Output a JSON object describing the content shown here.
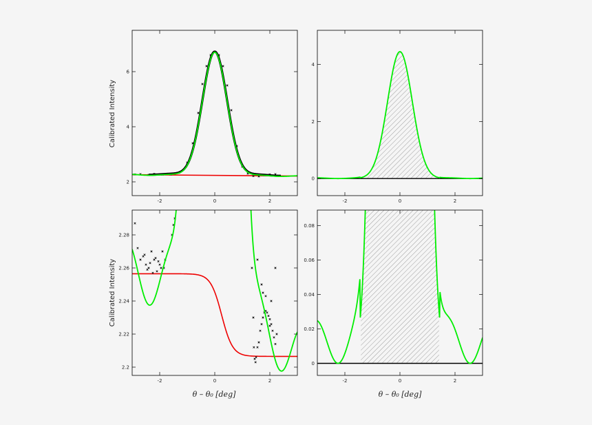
{
  "ylabel": "Calibrated Intensity",
  "xlabel": "θ  –  θ₀ [deg]",
  "colors": {
    "background": "#f5f5f5",
    "frame": "#000000",
    "observed": "#000000",
    "fit": "#00ee00",
    "baseline": "#ee0000",
    "hatch": "#888888"
  },
  "chart_data": [
    {
      "panel": "top-left",
      "type": "line",
      "xlim": [
        -3,
        3
      ],
      "ylim": [
        1.5,
        7.5
      ],
      "xticks": [
        "-2",
        "0",
        "2"
      ],
      "yticks": [
        "2",
        "4",
        "6"
      ],
      "ylabel": "Calibrated Intensity",
      "series": [
        {
          "role": "observed",
          "marker": "x",
          "x": [
            -2.9,
            -2.7,
            -2.4,
            -2.2,
            -1.9,
            -1.6,
            -1.3,
            -1.0,
            -0.8,
            -0.6,
            -0.45,
            -0.3,
            -0.15,
            0,
            0.15,
            0.3,
            0.45,
            0.6,
            0.8,
            1.0,
            1.2,
            1.4,
            1.6,
            1.8,
            2.0,
            2.2
          ],
          "y": [
            2.27,
            2.28,
            2.25,
            2.29,
            2.26,
            2.27,
            2.33,
            2.7,
            3.4,
            4.5,
            5.55,
            6.2,
            6.6,
            6.72,
            6.6,
            6.2,
            5.5,
            4.6,
            3.3,
            2.55,
            2.3,
            2.21,
            2.2,
            2.24,
            2.27,
            2.28
          ]
        },
        {
          "role": "fit",
          "form": "gaussian + baseline",
          "amplitude": 4.45,
          "center": 0.0,
          "sigma": 0.45,
          "baseline_start": 2.26,
          "baseline_end": 2.21
        },
        {
          "role": "baseline",
          "x": [
            -3,
            3
          ],
          "y": [
            2.26,
            2.21
          ]
        }
      ]
    },
    {
      "panel": "top-right",
      "type": "area",
      "xlim": [
        -3,
        3
      ],
      "ylim": [
        -0.6,
        5.2
      ],
      "xticks": [
        "-2",
        "0",
        "2"
      ],
      "yticks": [
        "0",
        "2",
        "4"
      ],
      "series": [
        {
          "role": "fit",
          "form": "baseline-subtracted gaussian",
          "amplitude": 4.45,
          "center": 0.0,
          "sigma": 0.45,
          "hatched_range": [
            -1.42,
            1.42
          ]
        },
        {
          "role": "zero",
          "x": [
            -3,
            3
          ],
          "y": [
            0,
            0
          ]
        }
      ]
    },
    {
      "panel": "bottom-left",
      "type": "line",
      "xlim": [
        -3,
        3
      ],
      "ylim": [
        2.195,
        2.295
      ],
      "xticks": [
        "-2",
        "0",
        "2"
      ],
      "yticks": [
        "2.2",
        "2.22",
        "2.24",
        "2.26",
        "2.28"
      ],
      "ylabel": "Calibrated Intensity",
      "series": [
        {
          "role": "observed",
          "marker": "x",
          "x": [
            -2.9,
            -2.8,
            -2.7,
            -2.6,
            -2.5,
            -2.4,
            -2.3,
            -2.2,
            -2.1,
            -2.0,
            -1.9,
            -1.8,
            -2.55,
            -2.35,
            -2.15,
            -1.95,
            -2.45,
            -2.25,
            -2.05,
            -1.85,
            -1.55,
            -1.5,
            -1.45,
            1.35,
            1.4,
            1.42,
            1.45,
            1.48,
            1.5,
            1.55,
            1.6,
            1.65,
            1.7,
            1.75,
            1.8,
            1.85,
            1.9,
            1.95,
            2.0,
            2.05,
            2.1,
            2.15,
            2.2,
            2.25,
            1.55,
            1.7,
            1.85,
            2.05,
            2.2,
            1.75,
            2.0
          ],
          "y": [
            2.287,
            2.272,
            2.265,
            2.267,
            2.262,
            2.26,
            2.27,
            2.265,
            2.258,
            2.262,
            2.27,
            2.265,
            2.268,
            2.263,
            2.266,
            2.26,
            2.259,
            2.257,
            2.264,
            2.26,
            2.28,
            2.286,
            2.29,
            2.26,
            2.23,
            2.212,
            2.205,
            2.203,
            2.206,
            2.212,
            2.215,
            2.222,
            2.226,
            2.23,
            2.233,
            2.234,
            2.233,
            2.231,
            2.229,
            2.226,
            2.222,
            2.218,
            2.214,
            2.22,
            2.265,
            2.25,
            2.243,
            2.24,
            2.26,
            2.245,
            2.225
          ]
        },
        {
          "role": "fit",
          "form": "gaussian + baseline (zoom)"
        },
        {
          "role": "baseline",
          "form": "smooth step",
          "upper": 2.2565,
          "lower": 2.2065,
          "center": 0.25,
          "width": 0.2
        }
      ]
    },
    {
      "panel": "bottom-right",
      "type": "area",
      "xlim": [
        -3,
        3
      ],
      "ylim": [
        -0.007,
        0.089
      ],
      "xticks": [
        "-2",
        "0",
        "2"
      ],
      "yticks": [
        "0",
        "0.02",
        "0.04",
        "0.06",
        "0.08"
      ],
      "series": [
        {
          "role": "fit",
          "form": "baseline-subtracted gaussian (zoom)",
          "hatched_range": [
            -1.42,
            1.42
          ]
        },
        {
          "role": "zero",
          "x": [
            -3,
            3
          ],
          "y": [
            0,
            0
          ]
        }
      ]
    }
  ]
}
